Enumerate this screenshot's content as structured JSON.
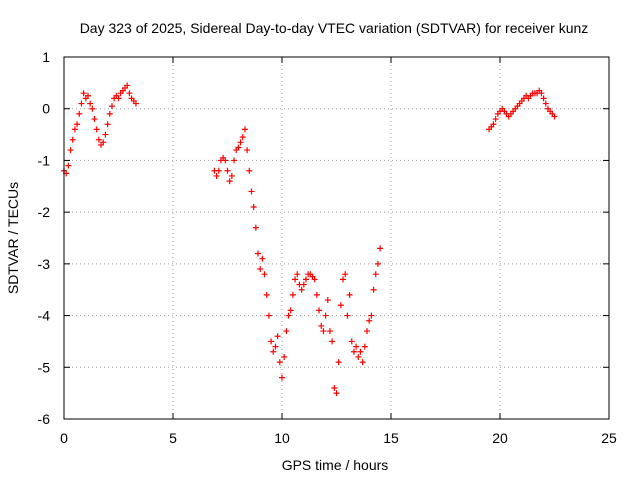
{
  "chart_data": {
    "type": "scatter",
    "title": "Day 323 of 2025, Sidereal Day-to-day VTEC variation (SDTVAR) for receiver kunz",
    "xlabel": "GPS time / hours",
    "ylabel": "SDTVAR / TECUs",
    "xlim": [
      0,
      25
    ],
    "ylim": [
      -6,
      1
    ],
    "xticks": [
      "0",
      "5",
      "10",
      "15",
      "20",
      "25"
    ],
    "yticks": [
      "1",
      "0",
      "-1",
      "-2",
      "-3",
      "-4",
      "-5",
      "-6"
    ],
    "grid": true,
    "marker": "plus",
    "color": "#ff0000",
    "series": [
      {
        "x": [
          0.0,
          0.1,
          0.2,
          0.3,
          0.4,
          0.5,
          0.6,
          0.7,
          0.8,
          0.9,
          1.0,
          1.1,
          1.2,
          1.3,
          1.4,
          1.5,
          1.6,
          1.7,
          1.8,
          1.9,
          2.0,
          2.1,
          2.2,
          2.3,
          2.4,
          2.5,
          2.6,
          2.7,
          2.8,
          2.9,
          3.0,
          3.1,
          3.2,
          3.3
        ],
        "y": [
          -1.2,
          -1.25,
          -1.1,
          -0.8,
          -0.6,
          -0.4,
          -0.3,
          -0.1,
          0.1,
          0.3,
          0.2,
          0.25,
          0.1,
          0.0,
          -0.2,
          -0.4,
          -0.6,
          -0.7,
          -0.65,
          -0.5,
          -0.3,
          -0.1,
          0.05,
          0.2,
          0.25,
          0.2,
          0.3,
          0.35,
          0.4,
          0.45,
          0.3,
          0.2,
          0.15,
          0.1
        ]
      },
      {
        "x": [
          6.9,
          7.0,
          7.1,
          7.2,
          7.3,
          7.4,
          7.5,
          7.6,
          7.7,
          7.8,
          7.9,
          8.0,
          8.1,
          8.2,
          8.3,
          8.4,
          8.5,
          8.6,
          8.7,
          8.8,
          8.9,
          9.0,
          9.1,
          9.2,
          9.3,
          9.4,
          9.5,
          9.6,
          9.7,
          9.8,
          9.9,
          10.0,
          10.1,
          10.2,
          10.3,
          10.4,
          10.5,
          10.6,
          10.7,
          10.8,
          10.9,
          11.0,
          11.1,
          11.2,
          11.3,
          11.4,
          11.5,
          11.6,
          11.7,
          11.8,
          11.9,
          12.0,
          12.1,
          12.2,
          12.3,
          12.4,
          12.5,
          12.6,
          12.7,
          12.8,
          12.9,
          13.0,
          13.1,
          13.2,
          13.3,
          13.4,
          13.5,
          13.6,
          13.7,
          13.8,
          13.9,
          14.0,
          14.1,
          14.2,
          14.3,
          14.4,
          14.5
        ],
        "y": [
          -1.2,
          -1.3,
          -1.2,
          -1.0,
          -0.95,
          -1.0,
          -1.2,
          -1.4,
          -1.3,
          -1.0,
          -0.8,
          -0.75,
          -0.65,
          -0.55,
          -0.4,
          -0.8,
          -1.2,
          -1.6,
          -1.9,
          -2.3,
          -2.8,
          -3.1,
          -2.9,
          -3.2,
          -3.6,
          -4.0,
          -4.5,
          -4.7,
          -4.6,
          -4.4,
          -4.9,
          -5.2,
          -4.8,
          -4.3,
          -4.0,
          -3.9,
          -3.6,
          -3.3,
          -3.2,
          -3.4,
          -3.5,
          -3.4,
          -3.3,
          -3.2,
          -3.2,
          -3.25,
          -3.3,
          -3.6,
          -3.9,
          -4.2,
          -4.3,
          -4.0,
          -3.7,
          -4.3,
          -4.5,
          -5.4,
          -5.5,
          -4.9,
          -3.8,
          -3.3,
          -3.2,
          -4.0,
          -3.6,
          -4.5,
          -4.7,
          -4.6,
          -4.8,
          -4.7,
          -4.9,
          -4.6,
          -4.3,
          -4.1,
          -4.0,
          -3.5,
          -3.2,
          -3.0,
          -2.7
        ]
      },
      {
        "x": [
          19.5,
          19.6,
          19.7,
          19.8,
          19.9,
          20.0,
          20.1,
          20.2,
          20.3,
          20.4,
          20.5,
          20.6,
          20.7,
          20.8,
          20.9,
          21.0,
          21.1,
          21.2,
          21.3,
          21.4,
          21.5,
          21.6,
          21.7,
          21.8,
          21.9,
          22.0,
          22.1,
          22.2,
          22.3,
          22.4,
          22.5
        ],
        "y": [
          -0.4,
          -0.35,
          -0.3,
          -0.2,
          -0.1,
          -0.05,
          -0.0,
          -0.05,
          -0.1,
          -0.15,
          -0.1,
          -0.05,
          0.0,
          0.05,
          0.1,
          0.15,
          0.2,
          0.25,
          0.2,
          0.25,
          0.3,
          0.3,
          0.3,
          0.35,
          0.3,
          0.2,
          0.1,
          0.0,
          -0.05,
          -0.1,
          -0.15
        ]
      }
    ]
  }
}
